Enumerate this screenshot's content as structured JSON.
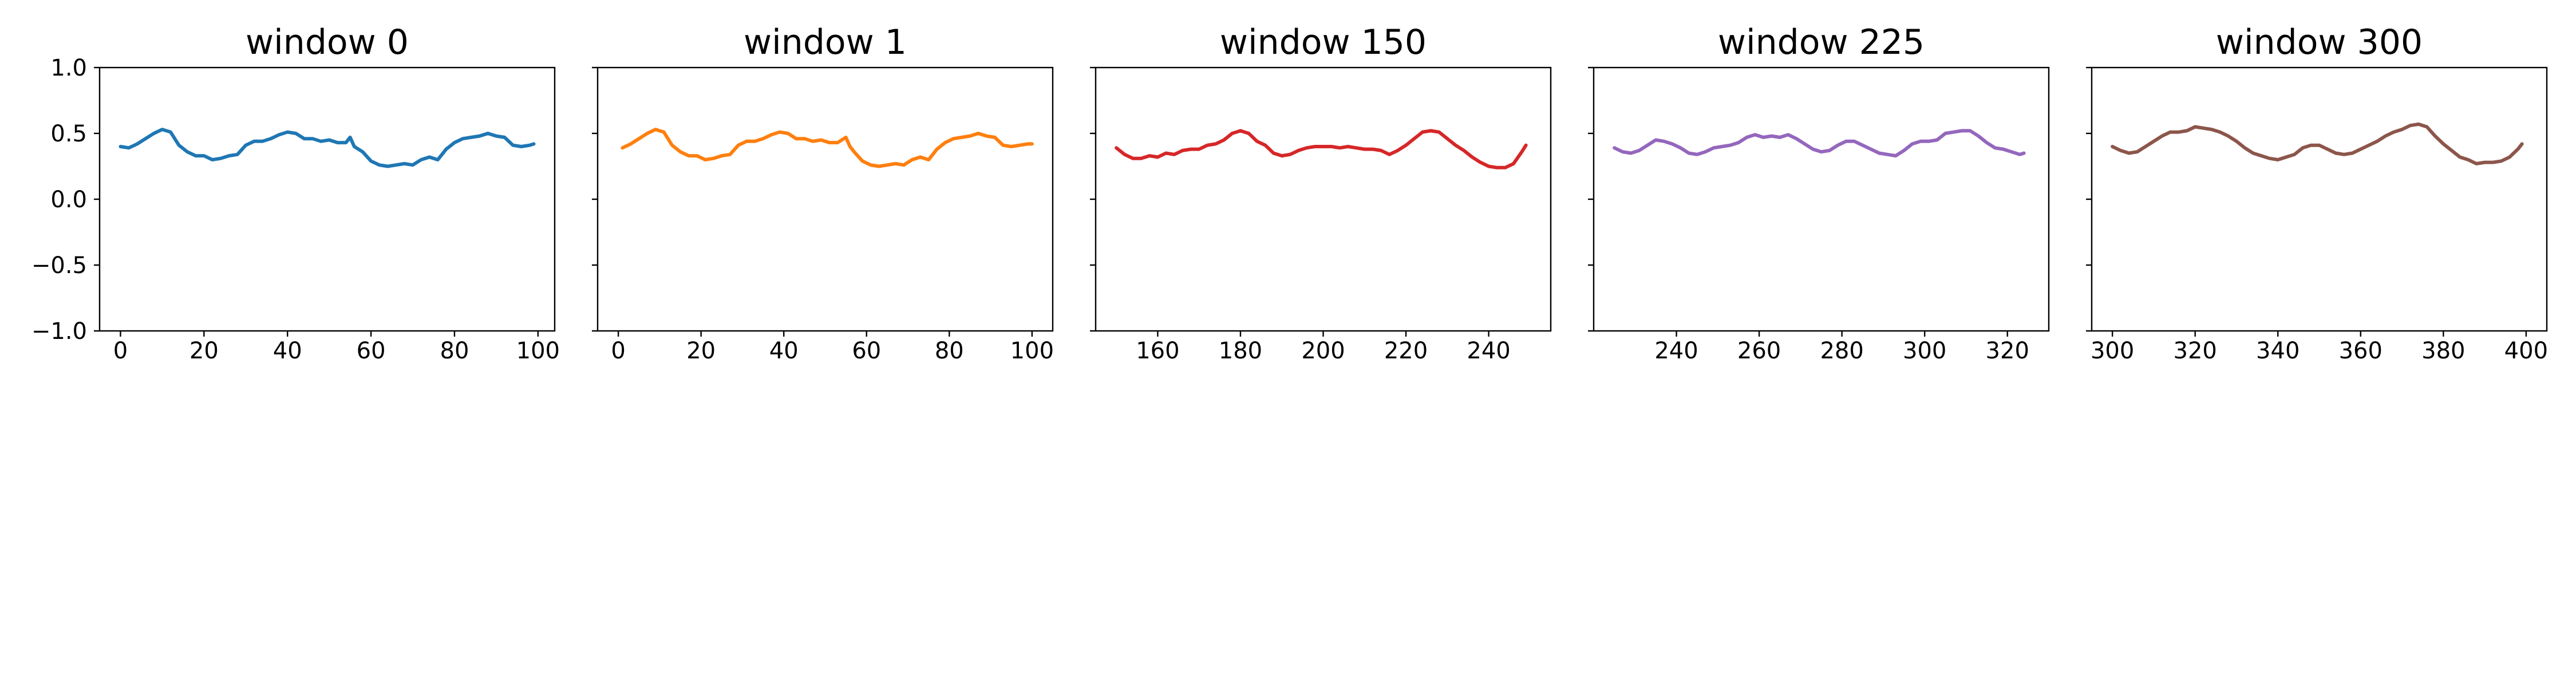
{
  "chart_data": [
    {
      "type": "line",
      "title": "window 0",
      "color": "#1f77b4",
      "xlim": [
        -5,
        104
      ],
      "ylim": [
        -1.0,
        1.0
      ],
      "xticks": [
        0,
        20,
        40,
        60,
        80,
        100
      ],
      "yticks": [
        -1.0,
        -0.5,
        0.0,
        0.5,
        1.0
      ],
      "ytick_labels": [
        "−1.0",
        "−0.5",
        "0.0",
        "0.5",
        "1.0"
      ],
      "show_ytick_labels": true,
      "x": [
        0,
        2,
        4,
        6,
        8,
        10,
        12,
        14,
        16,
        18,
        20,
        22,
        24,
        26,
        28,
        30,
        32,
        34,
        36,
        38,
        40,
        42,
        44,
        46,
        48,
        50,
        52,
        54,
        55,
        56,
        58,
        60,
        62,
        64,
        66,
        68,
        70,
        72,
        74,
        76,
        78,
        80,
        82,
        84,
        86,
        88,
        90,
        92,
        94,
        96,
        98,
        99
      ],
      "y": [
        0.4,
        0.39,
        0.42,
        0.46,
        0.5,
        0.53,
        0.51,
        0.41,
        0.36,
        0.33,
        0.33,
        0.3,
        0.31,
        0.33,
        0.34,
        0.41,
        0.44,
        0.44,
        0.46,
        0.49,
        0.51,
        0.5,
        0.46,
        0.46,
        0.44,
        0.45,
        0.43,
        0.43,
        0.47,
        0.4,
        0.36,
        0.29,
        0.26,
        0.25,
        0.26,
        0.27,
        0.26,
        0.3,
        0.32,
        0.3,
        0.38,
        0.43,
        0.46,
        0.47,
        0.48,
        0.5,
        0.48,
        0.47,
        0.41,
        0.4,
        0.41,
        0.42
      ]
    },
    {
      "type": "line",
      "title": "window 1",
      "color": "#ff7f0e",
      "xlim": [
        -5,
        105
      ],
      "ylim": [
        -1.0,
        1.0
      ],
      "xticks": [
        0,
        20,
        40,
        60,
        80,
        100
      ],
      "yticks": [
        -1.0,
        -0.5,
        0.0,
        0.5,
        1.0
      ],
      "show_ytick_labels": false,
      "x": [
        1,
        3,
        5,
        7,
        9,
        11,
        13,
        15,
        17,
        19,
        21,
        23,
        25,
        27,
        29,
        31,
        33,
        35,
        37,
        39,
        41,
        43,
        45,
        47,
        49,
        51,
        53,
        55,
        56,
        57,
        59,
        61,
        63,
        65,
        67,
        69,
        71,
        73,
        75,
        77,
        79,
        81,
        83,
        85,
        87,
        89,
        91,
        93,
        95,
        97,
        99,
        100
      ],
      "y": [
        0.39,
        0.42,
        0.46,
        0.5,
        0.53,
        0.51,
        0.41,
        0.36,
        0.33,
        0.33,
        0.3,
        0.31,
        0.33,
        0.34,
        0.41,
        0.44,
        0.44,
        0.46,
        0.49,
        0.51,
        0.5,
        0.46,
        0.46,
        0.44,
        0.45,
        0.43,
        0.43,
        0.47,
        0.4,
        0.36,
        0.29,
        0.26,
        0.25,
        0.26,
        0.27,
        0.26,
        0.3,
        0.32,
        0.3,
        0.38,
        0.43,
        0.46,
        0.47,
        0.48,
        0.5,
        0.48,
        0.47,
        0.41,
        0.4,
        0.41,
        0.42,
        0.42
      ]
    },
    {
      "type": "line",
      "title": "window 150",
      "color": "#d62728",
      "xlim": [
        145,
        255
      ],
      "ylim": [
        -1.0,
        1.0
      ],
      "xticks": [
        160,
        180,
        200,
        220,
        240
      ],
      "yticks": [
        -1.0,
        -0.5,
        0.0,
        0.5,
        1.0
      ],
      "show_ytick_labels": false,
      "x": [
        150,
        152,
        154,
        156,
        158,
        160,
        162,
        164,
        166,
        168,
        170,
        172,
        174,
        176,
        178,
        180,
        182,
        184,
        186,
        188,
        190,
        192,
        194,
        196,
        198,
        200,
        202,
        204,
        206,
        208,
        210,
        212,
        214,
        216,
        218,
        220,
        222,
        224,
        226,
        228,
        230,
        232,
        234,
        236,
        238,
        240,
        242,
        244,
        246,
        248,
        249
      ],
      "y": [
        0.39,
        0.34,
        0.31,
        0.31,
        0.33,
        0.32,
        0.35,
        0.34,
        0.37,
        0.38,
        0.38,
        0.41,
        0.42,
        0.45,
        0.5,
        0.52,
        0.5,
        0.44,
        0.41,
        0.35,
        0.33,
        0.34,
        0.37,
        0.39,
        0.4,
        0.4,
        0.4,
        0.39,
        0.4,
        0.39,
        0.38,
        0.38,
        0.37,
        0.34,
        0.37,
        0.41,
        0.46,
        0.51,
        0.52,
        0.51,
        0.46,
        0.41,
        0.37,
        0.32,
        0.28,
        0.25,
        0.24,
        0.24,
        0.27,
        0.36,
        0.41
      ]
    },
    {
      "type": "line",
      "title": "window 225",
      "color": "#9467bd",
      "xlim": [
        220,
        330
      ],
      "ylim": [
        -1.0,
        1.0
      ],
      "xticks": [
        240,
        260,
        280,
        300,
        320
      ],
      "yticks": [
        -1.0,
        -0.5,
        0.0,
        0.5,
        1.0
      ],
      "show_ytick_labels": false,
      "x": [
        225,
        227,
        229,
        231,
        233,
        235,
        237,
        239,
        241,
        243,
        245,
        247,
        249,
        251,
        253,
        255,
        257,
        259,
        261,
        263,
        265,
        267,
        269,
        271,
        273,
        275,
        277,
        279,
        281,
        283,
        285,
        287,
        289,
        291,
        293,
        295,
        297,
        299,
        301,
        303,
        305,
        307,
        309,
        311,
        313,
        315,
        317,
        319,
        321,
        323,
        324
      ],
      "y": [
        0.39,
        0.36,
        0.35,
        0.37,
        0.41,
        0.45,
        0.44,
        0.42,
        0.39,
        0.35,
        0.34,
        0.36,
        0.39,
        0.4,
        0.41,
        0.43,
        0.47,
        0.49,
        0.47,
        0.48,
        0.47,
        0.49,
        0.46,
        0.42,
        0.38,
        0.36,
        0.37,
        0.41,
        0.44,
        0.44,
        0.41,
        0.38,
        0.35,
        0.34,
        0.33,
        0.37,
        0.42,
        0.44,
        0.44,
        0.45,
        0.5,
        0.51,
        0.52,
        0.52,
        0.48,
        0.43,
        0.39,
        0.38,
        0.36,
        0.34,
        0.35
      ]
    },
    {
      "type": "line",
      "title": "window 300",
      "color": "#8c564b",
      "xlim": [
        295,
        405
      ],
      "ylim": [
        -1.0,
        1.0
      ],
      "xticks": [
        300,
        320,
        340,
        360,
        380,
        400
      ],
      "yticks": [
        -1.0,
        -0.5,
        0.0,
        0.5,
        1.0
      ],
      "show_ytick_labels": false,
      "x": [
        300,
        302,
        304,
        306,
        308,
        310,
        312,
        314,
        316,
        318,
        320,
        322,
        324,
        326,
        328,
        330,
        332,
        334,
        336,
        338,
        340,
        342,
        344,
        346,
        348,
        350,
        352,
        354,
        356,
        358,
        360,
        362,
        364,
        366,
        368,
        370,
        372,
        374,
        376,
        378,
        380,
        382,
        384,
        386,
        388,
        390,
        392,
        394,
        396,
        398,
        399
      ],
      "y": [
        0.4,
        0.37,
        0.35,
        0.36,
        0.4,
        0.44,
        0.48,
        0.51,
        0.51,
        0.52,
        0.55,
        0.54,
        0.53,
        0.51,
        0.48,
        0.44,
        0.39,
        0.35,
        0.33,
        0.31,
        0.3,
        0.32,
        0.34,
        0.39,
        0.41,
        0.41,
        0.38,
        0.35,
        0.34,
        0.35,
        0.38,
        0.41,
        0.44,
        0.48,
        0.51,
        0.53,
        0.56,
        0.57,
        0.55,
        0.48,
        0.42,
        0.37,
        0.32,
        0.3,
        0.27,
        0.28,
        0.28,
        0.29,
        0.32,
        0.38,
        0.42
      ]
    }
  ]
}
